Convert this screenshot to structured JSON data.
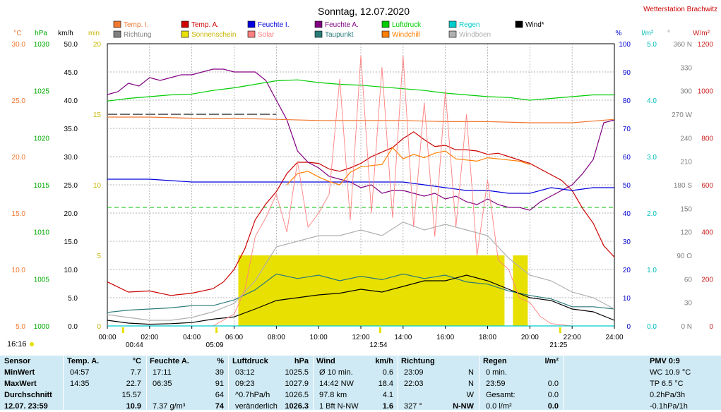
{
  "page": {
    "title": "Sonntag, 12.07.2020",
    "station": "Wetterstation Brachwitz",
    "time_left": "16:16",
    "sun_events": [
      {
        "time": "00:44",
        "hour": 0.73
      },
      {
        "time": "05:09",
        "hour": 5.15
      },
      {
        "time": "12:54",
        "hour": 12.9
      },
      {
        "time": "21:25",
        "hour": 21.42
      }
    ]
  },
  "colors": {
    "temp_in": "#f07830",
    "temp_out": "#cc0000",
    "hum_in": "#0000dd",
    "hum_out": "#800080",
    "pressure": "#00cc00",
    "rain": "#00cccc",
    "wind": "#000000",
    "direction": "#808080",
    "sunshine": "#e8e000",
    "solar": "#ff8080",
    "dewpoint": "#2a7a78",
    "windchill": "#ff8000",
    "gust": "#b0b0b0",
    "stats_bg": "#cfeaf4"
  },
  "chart_data": {
    "type": "line",
    "x_unit": "hour",
    "x_ticks": [
      "00:00",
      "02:00",
      "04:00",
      "06:00",
      "08:00",
      "10:00",
      "12:00",
      "14:00",
      "16:00",
      "18:00",
      "20:00",
      "22:00",
      "24:00"
    ],
    "xlim": [
      0,
      24
    ],
    "axes": [
      {
        "unit": "°C",
        "color": "#f07830",
        "ticks": [
          "30.0",
          "25.0",
          "20.0",
          "15.0",
          "10.0",
          "5.0"
        ],
        "range": [
          5,
          30
        ]
      },
      {
        "unit": "hPa",
        "color": "#00aa00",
        "ticks": [
          "1030",
          "1025",
          "1020",
          "1015",
          "1010",
          "1005",
          "1000"
        ],
        "range": [
          1000,
          1032
        ]
      },
      {
        "unit": "km/h",
        "color": "#000000",
        "ticks": [
          "50.0",
          "45.0",
          "40.0",
          "35.0",
          "30.0",
          "25.0",
          "20.0",
          "15.0",
          "10.0",
          "5.0",
          "0.0"
        ],
        "range": [
          0,
          50
        ]
      },
      {
        "unit": "min",
        "color": "#c8b400",
        "ticks": [
          "20",
          "15",
          "10",
          "5",
          "0"
        ],
        "range": [
          0,
          20
        ]
      },
      {
        "unit": "%",
        "color": "#0000cc",
        "ticks": [
          "100",
          "90",
          "80",
          "70",
          "60",
          "50",
          "40",
          "30",
          "20",
          "10",
          "0"
        ],
        "range": [
          0,
          100
        ]
      },
      {
        "unit": "l/m²",
        "color": "#00bbbb",
        "ticks": [
          "5.0",
          "4.0",
          "3.0",
          "2.0",
          "1.0",
          "0.0"
        ],
        "range": [
          0,
          5
        ]
      },
      {
        "unit": "°",
        "color": "#808080",
        "ticks": [
          "360 N",
          "330",
          "300",
          "270 W",
          "240",
          "210",
          "180 S",
          "150",
          "120",
          "90 O",
          "60",
          "30",
          "0 N"
        ],
        "range": [
          0,
          360
        ]
      },
      {
        "unit": "W/m²",
        "color": "#cc2020",
        "ticks": [
          "1200",
          "1000",
          "800",
          "600",
          "400",
          "200",
          "0"
        ],
        "range": [
          0,
          1200
        ]
      }
    ],
    "legend": [
      {
        "name": "Temp. I.",
        "color": "#f07830"
      },
      {
        "name": "Temp. A.",
        "color": "#cc0000"
      },
      {
        "name": "Feuchte I.",
        "color": "#0000dd"
      },
      {
        "name": "Feuchte A.",
        "color": "#800080"
      },
      {
        "name": "Luftdruck",
        "color": "#00cc00"
      },
      {
        "name": "Regen",
        "color": "#00cccc"
      },
      {
        "name": "Wind*",
        "color": "#000000"
      },
      {
        "name": "Richtung",
        "color": "#808080"
      },
      {
        "name": "Sonnenschein",
        "color": "#e8e000"
      },
      {
        "name": "Solar",
        "color": "#ff8080"
      },
      {
        "name": "Taupunkt",
        "color": "#2a7a78"
      },
      {
        "name": "Windchill",
        "color": "#ff8000"
      },
      {
        "name": "Windböen",
        "color": "#b0b0b0"
      }
    ],
    "series": [
      {
        "name": "Temp. A.",
        "axis": 0,
        "color": "#cc0000",
        "x": [
          0,
          1,
          2,
          3,
          4,
          5,
          5.5,
          6,
          6.5,
          7,
          7.5,
          8,
          8.5,
          9,
          9.5,
          10,
          10.5,
          11,
          11.5,
          12,
          12.5,
          13,
          13.5,
          14,
          14.5,
          15,
          15.5,
          16,
          16.5,
          17,
          17.5,
          18,
          18.5,
          19,
          19.5,
          20,
          20.5,
          21,
          21.5,
          22,
          22.5,
          23,
          23.5,
          24
        ],
        "y": [
          8.9,
          8.0,
          8.1,
          7.7,
          7.9,
          8.3,
          8.9,
          10.0,
          11.8,
          14.4,
          15.8,
          16.9,
          18.5,
          19.5,
          19.5,
          19.4,
          18.9,
          18.7,
          19.0,
          19.4,
          20.0,
          20.4,
          20.8,
          21.6,
          22.2,
          21.5,
          20.9,
          21.0,
          20.6,
          20.6,
          20.5,
          20.2,
          20.3,
          20.0,
          19.7,
          19.4,
          18.9,
          18.4,
          17.9,
          17.0,
          15.4,
          14.1,
          12.1,
          11.1
        ]
      },
      {
        "name": "Feuchte A.",
        "axis": 4,
        "color": "#800080",
        "x": [
          0,
          0.5,
          1,
          1.5,
          2,
          2.5,
          3,
          3.5,
          4,
          4.5,
          5,
          5.5,
          6,
          6.5,
          7,
          7.5,
          8,
          8.5,
          9,
          9.5,
          10,
          10.5,
          11,
          11.5,
          12,
          12.5,
          13,
          13.5,
          14,
          14.5,
          15,
          15.5,
          16,
          16.5,
          17,
          17.5,
          18,
          18.5,
          19,
          19.5,
          20,
          20.5,
          21,
          21.5,
          22,
          22.5,
          23,
          23.5,
          24
        ],
        "y": [
          82,
          83,
          86,
          85,
          88,
          87,
          88,
          89,
          89,
          90,
          91,
          91,
          90,
          90,
          90,
          87,
          80,
          73,
          62,
          58,
          56,
          53,
          52,
          51,
          49,
          50,
          47,
          48,
          48,
          47,
          46,
          47,
          45,
          46,
          44,
          43,
          45,
          43,
          42,
          42,
          41,
          44,
          46,
          48,
          50,
          54,
          59,
          72,
          73
        ]
      },
      {
        "name": "Luftdruck",
        "axis": 1,
        "color": "#00cc00",
        "x": [
          0,
          1,
          2,
          3,
          4,
          5,
          6,
          7,
          8,
          9,
          10,
          11,
          12,
          13,
          14,
          15,
          16,
          17,
          18,
          19,
          20,
          21,
          22,
          23,
          24
        ],
        "y": [
          1025.5,
          1025.8,
          1026.0,
          1026.2,
          1026.3,
          1026.7,
          1027.0,
          1027.4,
          1027.8,
          1027.9,
          1027.6,
          1027.4,
          1027.3,
          1027.1,
          1026.9,
          1026.7,
          1026.4,
          1026.2,
          1026.0,
          1025.9,
          1025.6,
          1025.8,
          1026.0,
          1026.2,
          1026.2
        ]
      },
      {
        "name": "Temp. I.",
        "axis": 0,
        "color": "#f07830",
        "x": [
          0,
          2,
          4,
          6,
          8,
          10,
          12,
          14,
          16,
          18,
          20,
          22,
          24
        ],
        "y": [
          23.5,
          23.5,
          23.4,
          23.4,
          23.3,
          23.2,
          23.2,
          23.2,
          23.1,
          23.1,
          23.0,
          23.0,
          23.3
        ]
      },
      {
        "name": "Feuchte I.",
        "axis": 4,
        "color": "#0000dd",
        "x": [
          0,
          2,
          4,
          6,
          8,
          10,
          12,
          14,
          15,
          16,
          17,
          18,
          19,
          20,
          21,
          22,
          23,
          24
        ],
        "y": [
          52,
          52,
          51,
          51,
          51,
          51,
          51,
          51,
          50,
          49,
          48,
          48,
          47,
          47,
          49,
          48,
          49,
          49
        ]
      },
      {
        "name": "Taupunkt",
        "axis": 0,
        "color": "#2a7a78",
        "x": [
          0,
          1,
          2,
          3,
          4,
          5,
          6,
          7,
          8,
          9,
          10,
          11,
          12,
          13,
          14,
          15,
          16,
          17,
          18,
          19,
          20,
          21,
          22,
          23,
          24
        ],
        "y": [
          6.2,
          6.4,
          6.5,
          6.6,
          6.8,
          6.8,
          7.3,
          8.2,
          9.6,
          9.2,
          9.5,
          9.0,
          9.4,
          9.1,
          9.6,
          9.2,
          9.5,
          8.9,
          8.7,
          8.1,
          7.7,
          7.4,
          6.7,
          6.7,
          6.5
        ]
      },
      {
        "name": "Windchill",
        "axis": 0,
        "color": "#ff8000",
        "x": [
          8.5,
          9,
          9.5,
          10,
          10.5,
          11,
          11.5,
          12,
          12.5,
          13,
          13.5,
          14,
          14.5,
          15,
          15.5,
          16,
          16.5,
          17,
          17.5,
          18,
          18.5,
          19,
          19.5,
          20
        ],
        "y": [
          17.5,
          18.5,
          18.7,
          18.2,
          17.8,
          17.5,
          18.6,
          19.1,
          19.2,
          19.3,
          20.8,
          19.8,
          20.2,
          19.9,
          20.3,
          20.5,
          19.8,
          19.7,
          19.6,
          19.9,
          19.8,
          19.7,
          19.6,
          19.3
        ]
      },
      {
        "name": "Wind*",
        "axis": 2,
        "color": "#000000",
        "x": [
          0,
          1,
          2,
          3,
          4,
          5,
          6,
          7,
          8,
          9,
          10,
          11,
          12,
          13,
          14,
          15,
          16,
          17,
          18,
          19,
          20,
          21,
          22,
          23,
          24
        ],
        "y": [
          1.0,
          0.5,
          0.3,
          0.4,
          0.6,
          1.2,
          1.6,
          3.0,
          4.5,
          5.0,
          5.5,
          5.8,
          6.5,
          6.0,
          7.0,
          8.0,
          8.0,
          9.0,
          8.0,
          6.5,
          5.0,
          4.5,
          3.0,
          2.5,
          1.0
        ]
      },
      {
        "name": "Windböen",
        "axis": 2,
        "color": "#b0b0b0",
        "x": [
          0,
          1,
          2,
          3,
          4,
          5,
          6,
          7,
          8,
          9,
          10,
          11,
          12,
          13,
          14,
          15,
          16,
          17,
          18,
          19,
          20,
          21,
          22,
          23,
          24
        ],
        "y": [
          2.0,
          1.5,
          1.0,
          1.0,
          1.5,
          2.5,
          4.0,
          8.0,
          14.0,
          15.0,
          16.0,
          16.0,
          17.0,
          16.0,
          18.4,
          17.0,
          18.0,
          17.0,
          16.0,
          12.0,
          9.0,
          8.0,
          6.0,
          5.0,
          3.0
        ]
      },
      {
        "name": "Solar",
        "axis": 7,
        "color": "#ff8080",
        "x": [
          0,
          5,
          6,
          6.5,
          7,
          7.5,
          8,
          8.5,
          9,
          9.5,
          10,
          10.5,
          11,
          11.5,
          12,
          12.5,
          13,
          13.5,
          14,
          14.5,
          15,
          15.5,
          16,
          16.5,
          17,
          17.5,
          18,
          18.5,
          19,
          19.5,
          20,
          20.5,
          21,
          22,
          24
        ],
        "y": [
          0,
          0,
          50,
          150,
          380,
          460,
          560,
          400,
          700,
          420,
          480,
          560,
          1050,
          450,
          1150,
          480,
          1100,
          460,
          1150,
          420,
          950,
          380,
          1000,
          420,
          900,
          300,
          620,
          280,
          240,
          120,
          100,
          40,
          10,
          0,
          0
        ]
      },
      {
        "name": "Regen",
        "axis": 5,
        "color": "#00cccc",
        "x": [
          0,
          24
        ],
        "y": [
          0,
          0
        ]
      }
    ],
    "sunshine_blocks": [
      {
        "start": 6.2,
        "end": 18.8,
        "minutes": 5
      },
      {
        "start": 19.2,
        "end": 19.9,
        "minutes": 5
      }
    ],
    "richtung_levels": [
      {
        "start": 0,
        "end": 8.0,
        "deg": 270
      }
    ]
  },
  "stats": {
    "columns": [
      {
        "header": "Sensor",
        "rows": [
          "MinWert",
          "MaxWert",
          "Durchschnitt",
          "12.07. 23:59"
        ]
      },
      {
        "header": "Temp. A.",
        "unit": "°C",
        "rows": [
          [
            "04:57",
            "7.7"
          ],
          [
            "14:35",
            "22.7"
          ],
          [
            "",
            "15.57"
          ],
          [
            "",
            "10.9"
          ]
        ]
      },
      {
        "header": "Feuchte A.",
        "unit": "%",
        "rows": [
          [
            "17:11",
            "39"
          ],
          [
            "06:35",
            "91"
          ],
          [
            "",
            "64"
          ],
          [
            "7.37 g/m³",
            "74"
          ]
        ]
      },
      {
        "header": "Luftdruck",
        "unit": "hPa",
        "rows": [
          [
            "03:12",
            "1025.5"
          ],
          [
            "09:23",
            "1027.9"
          ],
          [
            "^0.7hPa/h",
            "1026.5"
          ],
          [
            "veränderlich",
            "1026.3"
          ]
        ]
      },
      {
        "header": "Wind",
        "unit": "km/h",
        "rows": [
          [
            "Ø 10 min.",
            "0.6"
          ],
          [
            "14:42     NW",
            "18.4"
          ],
          [
            "97.8 km",
            "4.1"
          ],
          [
            "1 Bft N-NW",
            "1.6"
          ]
        ]
      },
      {
        "header": "Richtung",
        "unit": "",
        "rows": [
          [
            "23:09",
            "N"
          ],
          [
            "22:03",
            "N"
          ],
          [
            "",
            "W"
          ],
          [
            "327 °",
            "N-NW"
          ]
        ]
      },
      {
        "header": "Regen",
        "unit": "l/m²",
        "rows": [
          [
            "0 min.",
            ""
          ],
          [
            "23:59",
            "0.0"
          ],
          [
            "Gesamt:",
            "0.0"
          ],
          [
            "0.0 l/m²",
            "0.0"
          ]
        ]
      },
      {
        "header": "PMV 0:9",
        "unit": "",
        "rows": [
          "WC 10.9 °C",
          "TP 6.5 °C",
          "0.2hPa/3h",
          "-0.1hPa/1h"
        ]
      }
    ]
  }
}
